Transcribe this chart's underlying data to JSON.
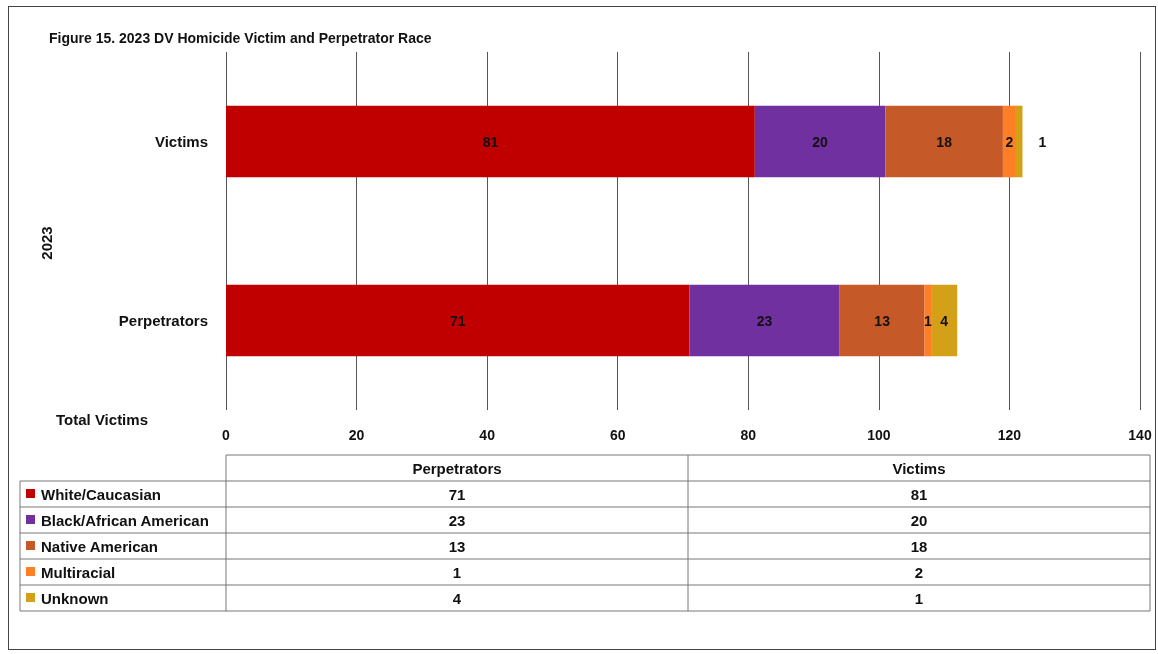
{
  "chart_data": {
    "type": "bar",
    "orientation": "horizontal",
    "stacked": true,
    "title": "Figure 15. 2023 DV Homicide Victim and Perpetrator Race",
    "xlabel": "Total Victims",
    "ylabel": "2023",
    "categories": [
      "Victims",
      "Perpetrators"
    ],
    "series": [
      {
        "name": "White/Caucasian",
        "color": "#c00000",
        "values": [
          81,
          71
        ]
      },
      {
        "name": "Black/African American",
        "color": "#7030a0",
        "values": [
          20,
          23
        ]
      },
      {
        "name": "Native American",
        "color": "#c55a28",
        "values": [
          18,
          13
        ]
      },
      {
        "name": "Multiracial",
        "color": "#ff7f27",
        "values": [
          2,
          1
        ]
      },
      {
        "name": "Unknown",
        "color": "#d4a017",
        "values": [
          1,
          4
        ]
      }
    ],
    "annotations": [
      "71",
      "81",
      "23",
      "20",
      "13",
      "18",
      "1",
      "2",
      "4",
      "1"
    ],
    "xlim": [
      0,
      140
    ],
    "xticks": [
      0,
      20,
      40,
      60,
      80,
      100,
      120,
      140
    ],
    "grid": "x",
    "legend": "bottom",
    "data_labels": true
  }
}
